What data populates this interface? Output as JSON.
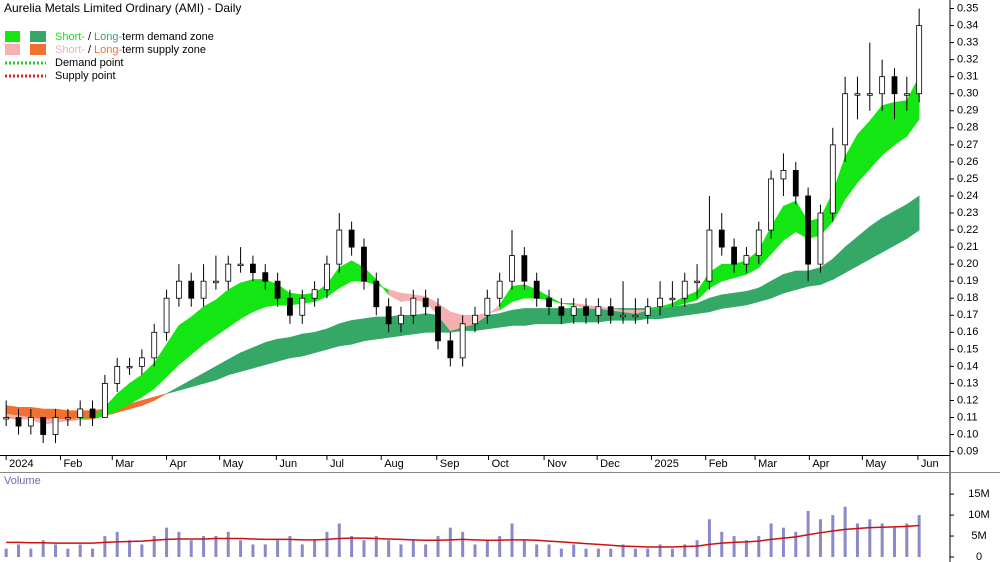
{
  "chart_data": {
    "type": "candlestick",
    "title": "Aurelia Metals Limited Ordinary (AMI) - Daily",
    "legend": {
      "demand": {
        "short": "Short-",
        "sep": "/",
        "long": "Long-",
        "text": "term demand zone"
      },
      "supply": {
        "short": "Short-",
        "sep": "/",
        "long": "Long-",
        "text": "term supply zone"
      },
      "demand_point": "Demand point",
      "supply_point": "Supply point"
    },
    "colors": {
      "short_demand": "#14e614",
      "long_demand": "#35a868",
      "short_supply": "#f7b0b0",
      "long_supply": "#f07030",
      "demand_point": "#22cc22",
      "supply_point": "#dd2222",
      "up": "#ffffff",
      "down": "#000000",
      "volume": "#8a8ac8",
      "volume_ma": "#cc1111"
    },
    "xlim": [
      -0.5,
      76.5
    ],
    "xticks": [
      {
        "value": 0,
        "label": "2024"
      },
      {
        "value": 4.4,
        "label": "Feb"
      },
      {
        "value": 8.6,
        "label": "Mar"
      },
      {
        "value": 13,
        "label": "Apr"
      },
      {
        "value": 17.3,
        "label": "May"
      },
      {
        "value": 21.9,
        "label": "Jun"
      },
      {
        "value": 26,
        "label": "Jul"
      },
      {
        "value": 30.4,
        "label": "Aug"
      },
      {
        "value": 34.9,
        "label": "Sep"
      },
      {
        "value": 39.1,
        "label": "Oct"
      },
      {
        "value": 43.6,
        "label": "Nov"
      },
      {
        "value": 47.9,
        "label": "Dec"
      },
      {
        "value": 52.3,
        "label": "2025"
      },
      {
        "value": 56.7,
        "label": "Feb"
      },
      {
        "value": 60.7,
        "label": "Mar"
      },
      {
        "value": 65.1,
        "label": "Apr"
      },
      {
        "value": 69.4,
        "label": "May"
      },
      {
        "value": 73.9,
        "label": "Jun"
      }
    ],
    "ylim": [
      0.088,
      0.355
    ],
    "yticks": [
      0.09,
      {
        "value": 0.1,
        "label": "0.10"
      },
      0.11,
      0.12,
      0.13,
      0.14,
      0.15,
      0.16,
      0.17,
      0.18,
      0.19,
      {
        "value": 0.2,
        "label": "0.20"
      },
      0.21,
      0.22,
      0.23,
      0.24,
      0.25,
      0.26,
      0.27,
      0.28,
      0.29,
      {
        "value": 0.3,
        "label": "0.30"
      },
      0.31,
      0.32,
      0.33,
      0.34,
      0.35
    ],
    "ohlc": [
      [
        0.11,
        0.12,
        0.105,
        0.11
      ],
      [
        0.11,
        0.115,
        0.1,
        0.105
      ],
      [
        0.105,
        0.115,
        0.1,
        0.11
      ],
      [
        0.11,
        0.11,
        0.095,
        0.1
      ],
      [
        0.1,
        0.115,
        0.095,
        0.11
      ],
      [
        0.11,
        0.115,
        0.105,
        0.11
      ],
      [
        0.11,
        0.12,
        0.105,
        0.115
      ],
      [
        0.115,
        0.12,
        0.105,
        0.11
      ],
      [
        0.11,
        0.135,
        0.11,
        0.13
      ],
      [
        0.13,
        0.145,
        0.125,
        0.14
      ],
      [
        0.14,
        0.145,
        0.135,
        0.14
      ],
      [
        0.14,
        0.15,
        0.135,
        0.145
      ],
      [
        0.145,
        0.165,
        0.14,
        0.16
      ],
      [
        0.16,
        0.185,
        0.155,
        0.18
      ],
      [
        0.18,
        0.2,
        0.175,
        0.19
      ],
      [
        0.19,
        0.195,
        0.175,
        0.18
      ],
      [
        0.18,
        0.2,
        0.175,
        0.19
      ],
      [
        0.19,
        0.205,
        0.185,
        0.19
      ],
      [
        0.19,
        0.205,
        0.185,
        0.2
      ],
      [
        0.2,
        0.21,
        0.195,
        0.2
      ],
      [
        0.2,
        0.205,
        0.19,
        0.195
      ],
      [
        0.195,
        0.2,
        0.185,
        0.19
      ],
      [
        0.19,
        0.195,
        0.175,
        0.18
      ],
      [
        0.18,
        0.185,
        0.165,
        0.17
      ],
      [
        0.17,
        0.185,
        0.165,
        0.18
      ],
      [
        0.18,
        0.19,
        0.175,
        0.185
      ],
      [
        0.185,
        0.205,
        0.18,
        0.2
      ],
      [
        0.2,
        0.23,
        0.195,
        0.22
      ],
      [
        0.22,
        0.225,
        0.205,
        0.21
      ],
      [
        0.21,
        0.215,
        0.185,
        0.19
      ],
      [
        0.19,
        0.195,
        0.17,
        0.175
      ],
      [
        0.175,
        0.18,
        0.16,
        0.165
      ],
      [
        0.165,
        0.175,
        0.16,
        0.17
      ],
      [
        0.17,
        0.185,
        0.165,
        0.18
      ],
      [
        0.18,
        0.185,
        0.17,
        0.175
      ],
      [
        0.175,
        0.18,
        0.15,
        0.155
      ],
      [
        0.155,
        0.16,
        0.14,
        0.145
      ],
      [
        0.145,
        0.17,
        0.14,
        0.165
      ],
      [
        0.165,
        0.175,
        0.16,
        0.17
      ],
      [
        0.17,
        0.185,
        0.165,
        0.18
      ],
      [
        0.18,
        0.195,
        0.175,
        0.19
      ],
      [
        0.19,
        0.22,
        0.185,
        0.205
      ],
      [
        0.205,
        0.21,
        0.185,
        0.19
      ],
      [
        0.19,
        0.195,
        0.175,
        0.18
      ],
      [
        0.18,
        0.185,
        0.17,
        0.175
      ],
      [
        0.175,
        0.18,
        0.165,
        0.17
      ],
      [
        0.17,
        0.18,
        0.165,
        0.175
      ],
      [
        0.175,
        0.18,
        0.165,
        0.17
      ],
      [
        0.17,
        0.18,
        0.165,
        0.175
      ],
      [
        0.175,
        0.18,
        0.165,
        0.17
      ],
      [
        0.17,
        0.19,
        0.165,
        0.17
      ],
      [
        0.17,
        0.18,
        0.165,
        0.17
      ],
      [
        0.17,
        0.18,
        0.165,
        0.175
      ],
      [
        0.175,
        0.19,
        0.17,
        0.18
      ],
      [
        0.18,
        0.19,
        0.175,
        0.18
      ],
      [
        0.18,
        0.195,
        0.175,
        0.19
      ],
      [
        0.19,
        0.2,
        0.18,
        0.19
      ],
      [
        0.19,
        0.24,
        0.185,
        0.22
      ],
      [
        0.22,
        0.23,
        0.205,
        0.21
      ],
      [
        0.21,
        0.215,
        0.195,
        0.2
      ],
      [
        0.2,
        0.21,
        0.195,
        0.205
      ],
      [
        0.205,
        0.225,
        0.2,
        0.22
      ],
      [
        0.22,
        0.255,
        0.215,
        0.25
      ],
      [
        0.25,
        0.265,
        0.24,
        0.255
      ],
      [
        0.255,
        0.26,
        0.235,
        0.24
      ],
      [
        0.24,
        0.245,
        0.19,
        0.2
      ],
      [
        0.2,
        0.235,
        0.195,
        0.23
      ],
      [
        0.23,
        0.28,
        0.225,
        0.27
      ],
      [
        0.27,
        0.31,
        0.26,
        0.3
      ],
      [
        0.3,
        0.31,
        0.285,
        0.3
      ],
      [
        0.3,
        0.33,
        0.29,
        0.3
      ],
      [
        0.3,
        0.32,
        0.29,
        0.31
      ],
      [
        0.31,
        0.315,
        0.285,
        0.3
      ],
      [
        0.3,
        0.31,
        0.29,
        0.3
      ],
      [
        0.3,
        0.35,
        0.295,
        0.34
      ]
    ],
    "short_zone": {
      "fast": [
        0.111,
        0.109,
        0.109,
        0.106,
        0.107,
        0.108,
        0.11,
        0.11,
        0.116,
        0.124,
        0.13,
        0.135,
        0.142,
        0.153,
        0.164,
        0.169,
        0.175,
        0.179,
        0.185,
        0.189,
        0.191,
        0.191,
        0.188,
        0.183,
        0.182,
        0.183,
        0.188,
        0.198,
        0.202,
        0.198,
        0.191,
        0.182,
        0.178,
        0.179,
        0.178,
        0.17,
        0.161,
        0.163,
        0.165,
        0.17,
        0.176,
        0.187,
        0.188,
        0.185,
        0.181,
        0.177,
        0.176,
        0.174,
        0.174,
        0.173,
        0.172,
        0.171,
        0.173,
        0.175,
        0.177,
        0.181,
        0.184,
        0.195,
        0.2,
        0.2,
        0.202,
        0.208,
        0.222,
        0.234,
        0.237,
        0.225,
        0.227,
        0.242,
        0.263,
        0.276,
        0.284,
        0.293,
        0.295,
        0.296,
        0.31
      ],
      "slow": [
        0.112,
        0.111,
        0.11,
        0.109,
        0.109,
        0.109,
        0.109,
        0.11,
        0.111,
        0.114,
        0.118,
        0.122,
        0.127,
        0.134,
        0.141,
        0.147,
        0.153,
        0.158,
        0.163,
        0.168,
        0.172,
        0.175,
        0.176,
        0.176,
        0.177,
        0.178,
        0.181,
        0.186,
        0.19,
        0.19,
        0.188,
        0.185,
        0.183,
        0.182,
        0.181,
        0.177,
        0.172,
        0.17,
        0.17,
        0.171,
        0.173,
        0.178,
        0.18,
        0.18,
        0.179,
        0.177,
        0.177,
        0.176,
        0.175,
        0.174,
        0.173,
        0.173,
        0.173,
        0.174,
        0.175,
        0.177,
        0.179,
        0.186,
        0.19,
        0.192,
        0.194,
        0.198,
        0.206,
        0.214,
        0.219,
        0.215,
        0.217,
        0.225,
        0.238,
        0.248,
        0.256,
        0.264,
        0.27,
        0.275,
        0.285
      ]
    },
    "long_zone": {
      "fast": [
        0.11,
        0.109,
        0.109,
        0.108,
        0.108,
        0.108,
        0.109,
        0.109,
        0.111,
        0.113,
        0.115,
        0.117,
        0.12,
        0.124,
        0.128,
        0.132,
        0.136,
        0.14,
        0.144,
        0.148,
        0.151,
        0.154,
        0.156,
        0.157,
        0.159,
        0.16,
        0.162,
        0.165,
        0.167,
        0.168,
        0.169,
        0.169,
        0.17,
        0.17,
        0.171,
        0.17,
        0.169,
        0.169,
        0.169,
        0.17,
        0.171,
        0.173,
        0.174,
        0.174,
        0.174,
        0.174,
        0.174,
        0.174,
        0.174,
        0.174,
        0.174,
        0.174,
        0.174,
        0.175,
        0.175,
        0.176,
        0.177,
        0.18,
        0.182,
        0.183,
        0.184,
        0.186,
        0.19,
        0.194,
        0.196,
        0.196,
        0.198,
        0.203,
        0.21,
        0.216,
        0.222,
        0.227,
        0.231,
        0.235,
        0.24
      ],
      "slow": [
        0.117,
        0.116,
        0.116,
        0.115,
        0.115,
        0.114,
        0.114,
        0.114,
        0.115,
        0.117,
        0.118,
        0.12,
        0.122,
        0.124,
        0.126,
        0.128,
        0.13,
        0.132,
        0.135,
        0.137,
        0.139,
        0.141,
        0.143,
        0.145,
        0.146,
        0.148,
        0.15,
        0.152,
        0.153,
        0.155,
        0.156,
        0.157,
        0.158,
        0.159,
        0.16,
        0.16,
        0.16,
        0.161,
        0.161,
        0.162,
        0.163,
        0.164,
        0.164,
        0.165,
        0.165,
        0.165,
        0.166,
        0.166,
        0.166,
        0.167,
        0.167,
        0.167,
        0.168,
        0.168,
        0.169,
        0.17,
        0.171,
        0.172,
        0.174,
        0.175,
        0.176,
        0.178,
        0.18,
        0.183,
        0.185,
        0.187,
        0.188,
        0.191,
        0.195,
        0.199,
        0.203,
        0.207,
        0.211,
        0.215,
        0.22
      ]
    },
    "volume": {
      "label": "Volume",
      "values": [
        2,
        3,
        2,
        4,
        3,
        2,
        3,
        2,
        5,
        6,
        4,
        3,
        5,
        7,
        6,
        4,
        5,
        5,
        6,
        4,
        3,
        3,
        4,
        5,
        3,
        4,
        6,
        8,
        5,
        4,
        5,
        4,
        3,
        4,
        3,
        5,
        7,
        6,
        3,
        4,
        5,
        8,
        4,
        3,
        3,
        2,
        3,
        2,
        2,
        2,
        3,
        2,
        2,
        3,
        2,
        3,
        4,
        9,
        6,
        5,
        4,
        5,
        8,
        7,
        6,
        11,
        9,
        10,
        12,
        8,
        9,
        8,
        7,
        8,
        10
      ],
      "ma": [
        3.5,
        3.5,
        3.4,
        3.4,
        3.3,
        3.3,
        3.3,
        3.3,
        3.5,
        3.6,
        3.7,
        3.8,
        4.0,
        4.2,
        4.3,
        4.3,
        4.3,
        4.4,
        4.4,
        4.4,
        4.3,
        4.2,
        4.2,
        4.2,
        4.1,
        4.1,
        4.2,
        4.4,
        4.5,
        4.5,
        4.4,
        4.3,
        4.2,
        4.1,
        4.0,
        4.0,
        4.1,
        4.2,
        4.1,
        4.0,
        4.0,
        4.1,
        4.1,
        4.0,
        3.8,
        3.6,
        3.4,
        3.2,
        3.0,
        2.8,
        2.6,
        2.5,
        2.4,
        2.4,
        2.4,
        2.5,
        2.6,
        3.0,
        3.3,
        3.5,
        3.6,
        3.8,
        4.2,
        4.5,
        4.8,
        5.3,
        5.8,
        6.2,
        6.6,
        6.8,
        7.0,
        7.1,
        7.2,
        7.3,
        7.5
      ],
      "ylim": [
        0,
        19.8
      ],
      "yticks": [
        0,
        {
          "value": 5,
          "label": "5M"
        },
        {
          "value": 10,
          "label": "10M"
        },
        {
          "value": 15,
          "label": "15M"
        }
      ]
    }
  }
}
